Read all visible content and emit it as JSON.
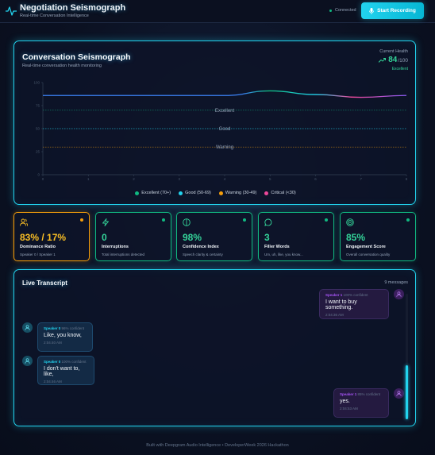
{
  "header": {
    "title": "Negotiation Seismograph",
    "subtitle": "Real-time Conversation Intelligence",
    "connection_status": "Connected",
    "record_button": "Start Recording"
  },
  "seismograph": {
    "title": "Conversation Seismograph",
    "subtitle": "Real-time conversation health monitoring",
    "health_label": "Current Health",
    "health_value": "84",
    "health_max": "/100",
    "health_status": "Excellent",
    "zones": {
      "excellent": "Excellent",
      "good": "Good",
      "warning": "Warning"
    },
    "legend": [
      {
        "label": "Excellent (70+)",
        "color": "#10b981"
      },
      {
        "label": "Good (50-69)",
        "color": "#22d3ee"
      },
      {
        "label": "Warning (30-49)",
        "color": "#f59e0b"
      },
      {
        "label": "Critical (<30)",
        "color": "#ec4899"
      }
    ]
  },
  "chart_data": {
    "type": "line",
    "x": [
      0,
      1,
      2,
      3,
      4,
      5,
      6,
      7,
      8
    ],
    "x_ticks": [
      "0",
      "1",
      "2",
      "3",
      "4",
      "5",
      "6",
      "7",
      "8"
    ],
    "y_ticks": [
      "0",
      "25",
      "50",
      "75",
      "100"
    ],
    "ylim": [
      0,
      100
    ],
    "xlim": [
      0,
      8
    ],
    "series": [
      {
        "values": [
          86,
          86,
          86,
          86,
          86,
          91,
          87,
          84,
          86
        ]
      }
    ],
    "thresholds": [
      {
        "label": "Excellent",
        "value": 70,
        "color": "#10b981"
      },
      {
        "label": "Good",
        "value": 50,
        "color": "#22d3ee"
      },
      {
        "label": "Warning",
        "value": 30,
        "color": "#f59e0b"
      }
    ],
    "grid": false
  },
  "metrics": [
    {
      "value": "83% / 17%",
      "label": "Dominance Ratio",
      "desc": "Speaker 0 / Speaker 1",
      "icon": "users-icon",
      "status": "warning"
    },
    {
      "value": "0",
      "label": "Interruptions",
      "desc": "Total interruptions detected",
      "icon": "lightning-icon",
      "status": "good"
    },
    {
      "value": "98%",
      "label": "Confidence Index",
      "desc": "Speech clarity & certainty",
      "icon": "half-circle-icon",
      "status": "good"
    },
    {
      "value": "3",
      "label": "Filler Words",
      "desc": "Um, uh, like, you know...",
      "icon": "chat-bubble-icon",
      "status": "good"
    },
    {
      "value": "85%",
      "label": "Engagement Score",
      "desc": "Overall conversation quality",
      "icon": "target-icon",
      "status": "good"
    }
  ],
  "transcript": {
    "title": "Live Transcript",
    "count": "9 messages",
    "messages": [
      {
        "speaker": "Speaker 1",
        "confidence": "100% confident",
        "text": "I want to buy something.",
        "time": "2:04:36 AM"
      },
      {
        "speaker": "Speaker 0",
        "confidence": "96% confident",
        "text": "Like, you know,",
        "time": "2:04:40 AM"
      },
      {
        "speaker": "Speaker 0",
        "confidence": "100% confident",
        "text": "I don't want to, like,",
        "time": "2:04:46 AM"
      },
      {
        "speaker": "Speaker 1",
        "confidence": "85% confident",
        "text": "yes.",
        "time": "2:04:53 AM"
      }
    ]
  },
  "footer": "Built with Deepgram Audio Intelligence • DeveloperWeek 2026 Hackathon"
}
